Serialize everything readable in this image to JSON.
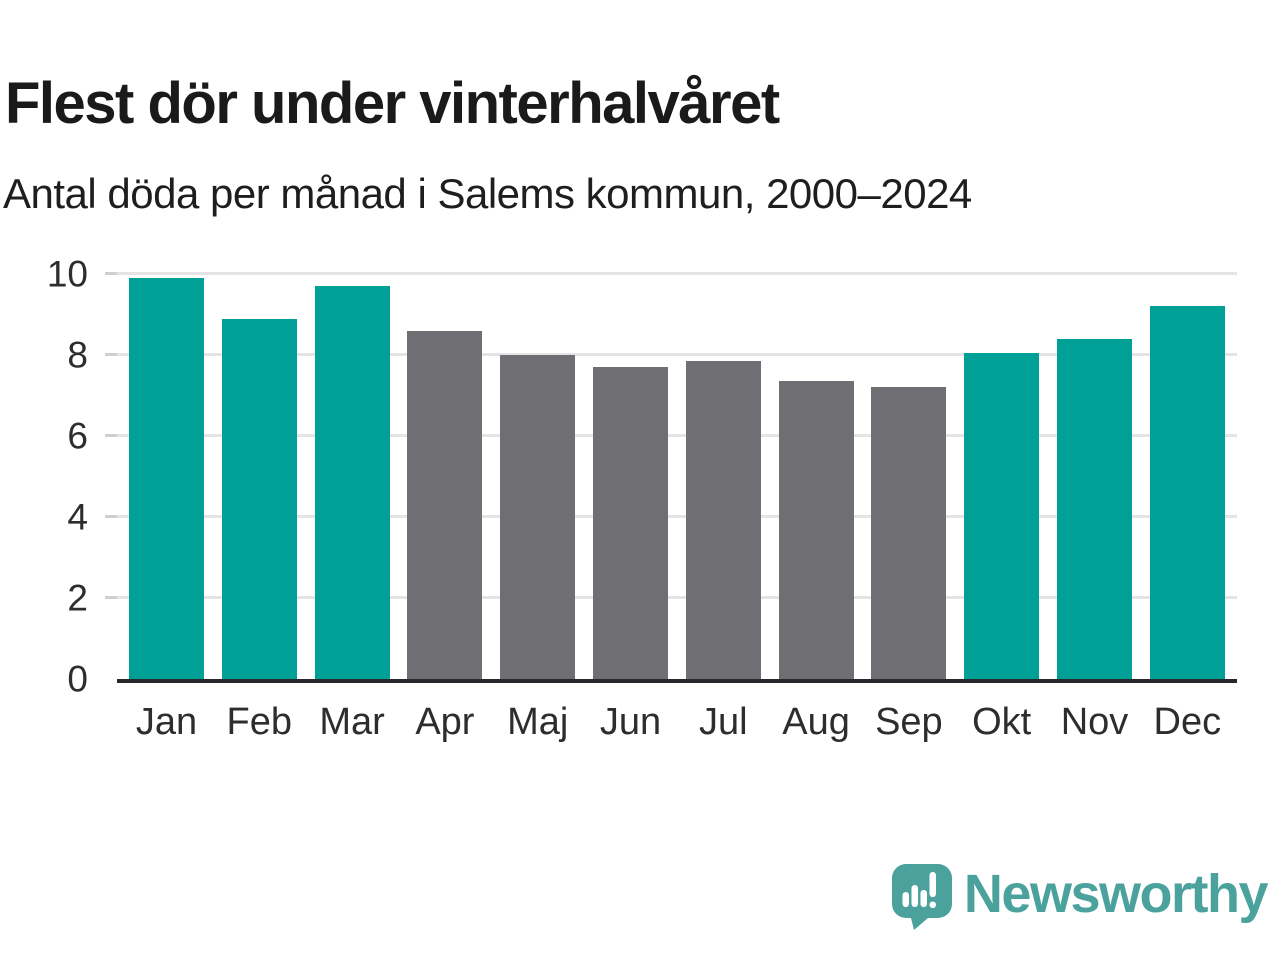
{
  "chart_data": {
    "type": "bar",
    "title": "Flest dör under vinterhalvåret",
    "subtitle": "Antal döda per månad i Salems kommun, 2000–2024",
    "categories": [
      "Jan",
      "Feb",
      "Mar",
      "Apr",
      "Maj",
      "Jun",
      "Jul",
      "Aug",
      "Sep",
      "Okt",
      "Nov",
      "Dec"
    ],
    "values": [
      9.9,
      8.9,
      9.7,
      8.6,
      8.0,
      7.7,
      7.85,
      7.35,
      7.2,
      8.05,
      8.4,
      9.2
    ],
    "bar_colors": [
      "teal",
      "teal",
      "teal",
      "gray",
      "gray",
      "gray",
      "gray",
      "gray",
      "gray",
      "teal",
      "teal",
      "teal"
    ],
    "palette": {
      "teal": "#00A096",
      "gray": "#6F6E73"
    },
    "xlabel": "",
    "ylabel": "",
    "ylim": [
      0,
      10
    ],
    "yticks": [
      0,
      2,
      4,
      6,
      8,
      10
    ],
    "grid": "horizontal-only",
    "legend": "none"
  },
  "branding": {
    "logo_text": "Newsworthy",
    "logo_color": "#4BA29D",
    "logo_icon": "speech-bubble-with-bar-chart-and-exclamation"
  }
}
